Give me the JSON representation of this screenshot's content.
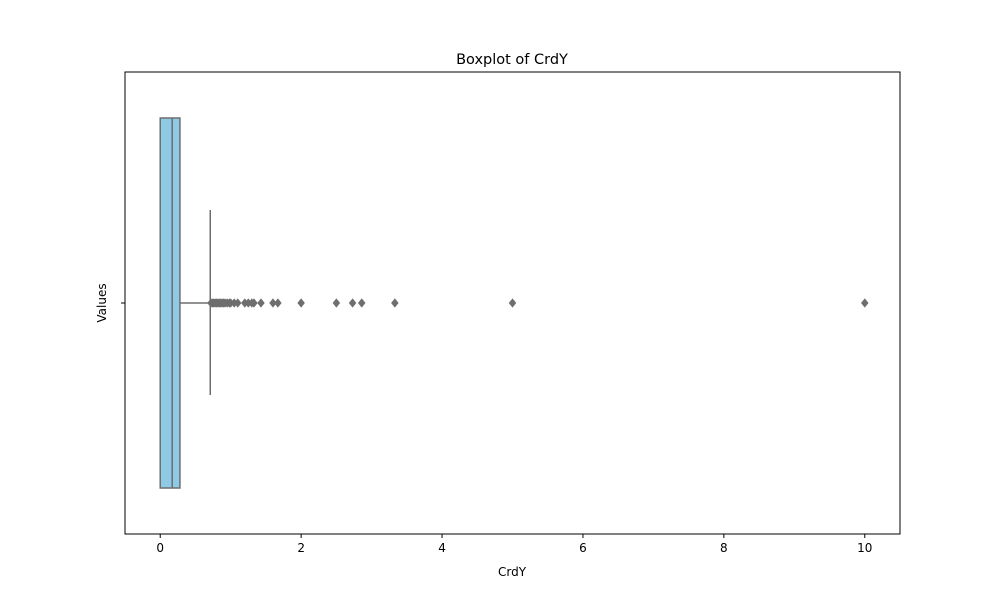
{
  "chart_data": {
    "type": "boxplot",
    "orientation": "horizontal",
    "title": "Boxplot of CrdY",
    "xlabel": "CrdY",
    "ylabel": "Values",
    "xlim": [
      -0.5,
      10.5
    ],
    "xticks": [
      0,
      2,
      4,
      6,
      8,
      10
    ],
    "grid": false,
    "legend": "none",
    "box": {
      "q1": 0.0,
      "median": 0.17,
      "q3": 0.28,
      "whisker_low": 0.0,
      "whisker_high": 0.71
    },
    "outliers": [
      0.72,
      0.74,
      0.76,
      0.78,
      0.8,
      0.82,
      0.84,
      0.86,
      0.88,
      0.9,
      0.92,
      0.95,
      0.98,
      1.0,
      1.05,
      1.1,
      1.2,
      1.25,
      1.3,
      1.33,
      1.43,
      1.6,
      1.67,
      2.0,
      2.5,
      2.73,
      2.86,
      3.33,
      5.0,
      10.0
    ],
    "colors": {
      "box_fill": "#8ecae6",
      "line": "#6e6e6e",
      "outlier": "#6e6e6e"
    }
  }
}
